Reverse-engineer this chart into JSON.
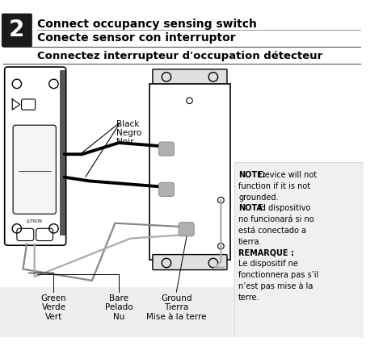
{
  "title_line1": "Connect occupancy sensing switch",
  "title_line2": "Conecte sensor con interruptor",
  "title_line3": "Connectez interrupteur d'occupation détecteur",
  "step_number": "2",
  "label_black": "Black\nNegro\nNoir",
  "label_green": "Green\nVerde\nVert",
  "label_bare": "Bare\nPelado\nNu",
  "label_ground": "Ground\nTierra\nMise à la terre",
  "bg_color": "#ffffff",
  "text_color": "#000000",
  "note_lines": [
    [
      "NOTE:",
      " Device will not"
    ],
    [
      "",
      "function if it is not"
    ],
    [
      "",
      "grounded."
    ],
    [
      "NOTA:",
      " El dispositivo"
    ],
    [
      "",
      "no funcionará si no"
    ],
    [
      "",
      "está conectado a"
    ],
    [
      "",
      "tierra."
    ],
    [
      "REMARQUE :",
      ""
    ],
    [
      "",
      "Le dispositif ne"
    ],
    [
      "",
      "fonctionnera pas s’il"
    ],
    [
      "",
      "n’est pas mise à la"
    ],
    [
      "",
      "terre."
    ]
  ]
}
